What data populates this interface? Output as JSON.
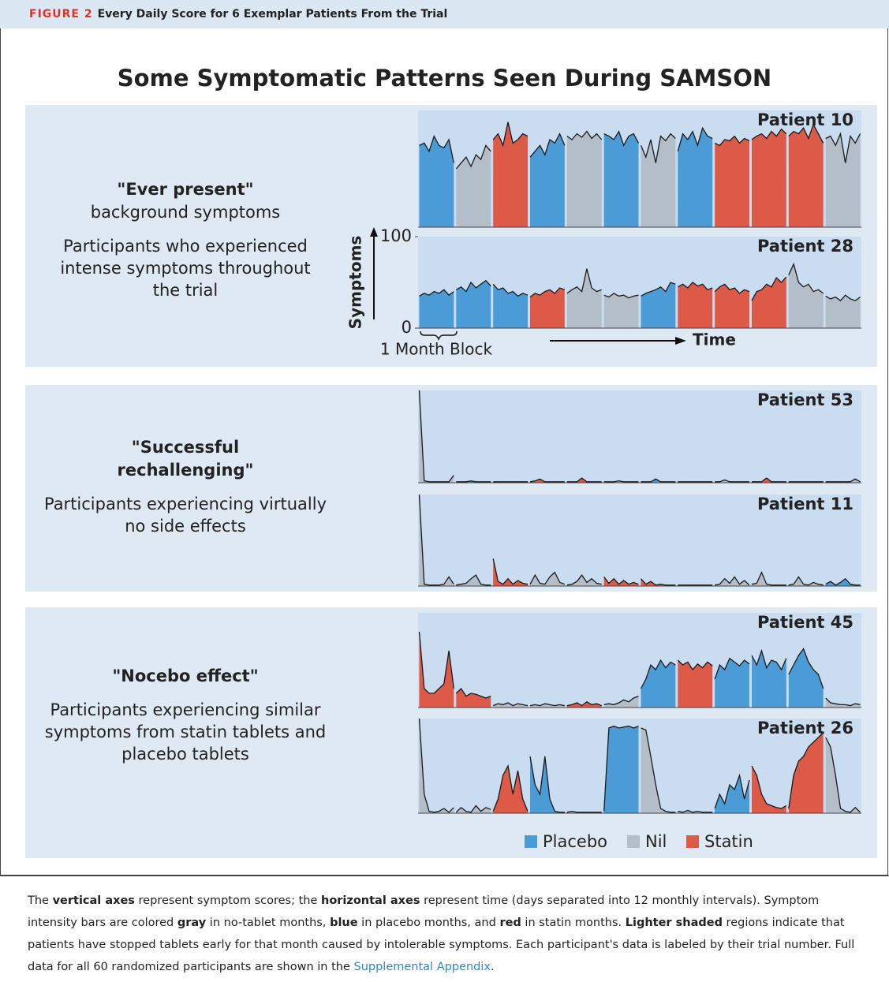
{
  "header": {
    "label": "FIGURE 2",
    "title": "Every Daily Score for 6 Exemplar Patients From the Trial"
  },
  "title": "Some Symptomatic Patterns Seen During SAMSON",
  "sections": [
    {
      "heading": [
        "\"Ever present\"",
        "background symptoms"
      ],
      "description": "Participants who experienced intense symptoms throughout the trial"
    },
    {
      "heading": [
        "\"Successful rechallenging\""
      ],
      "description": "Participants experiencing virtually no side effects"
    },
    {
      "heading": [
        "\"Nocebo effect\""
      ],
      "description": "Participants experiencing similar symptoms from statin tablets and placebo tablets"
    }
  ],
  "chart_data": {
    "type": "block-area",
    "ylim": [
      0,
      100
    ],
    "yticks": [
      0,
      100
    ],
    "ylabel": "Symptoms",
    "xlabel": "Time",
    "block_label": "1 Month Block",
    "legend": [
      {
        "name": "Placebo",
        "color": "#4a9bd6"
      },
      {
        "name": "Nil",
        "color": "#b4bec8"
      },
      {
        "name": "Statin",
        "color": "#dd5a48"
      }
    ],
    "panels": [
      {
        "title": "Patient 10",
        "blocks": [
          {
            "group": "Placebo",
            "values": [
              70,
              72,
              65,
              78,
              70,
              68,
              75,
              55
            ]
          },
          {
            "group": "Nil",
            "values": [
              50,
              55,
              60,
              52,
              62,
              58,
              70,
              65
            ]
          },
          {
            "group": "Statin",
            "values": [
              75,
              80,
              70,
              90,
              72,
              75,
              80,
              78
            ]
          },
          {
            "group": "Placebo",
            "values": [
              60,
              65,
              70,
              62,
              75,
              72,
              80,
              70
            ]
          },
          {
            "group": "Nil",
            "values": [
              78,
              75,
              80,
              77,
              82,
              76,
              80,
              75
            ]
          },
          {
            "group": "Placebo",
            "values": [
              80,
              78,
              75,
              82,
              70,
              78,
              80,
              72
            ]
          },
          {
            "group": "Nil",
            "values": [
              70,
              60,
              75,
              55,
              78,
              74,
              80,
              76
            ]
          },
          {
            "group": "Placebo",
            "values": [
              65,
              80,
              75,
              82,
              70,
              85,
              78,
              76
            ]
          },
          {
            "group": "Statin",
            "values": [
              72,
              70,
              75,
              74,
              78,
              72,
              76,
              74
            ]
          },
          {
            "group": "Statin",
            "values": [
              75,
              78,
              80,
              76,
              82,
              78,
              84,
              80
            ]
          },
          {
            "group": "Statin",
            "values": [
              78,
              82,
              80,
              85,
              76,
              88,
              80,
              72
            ]
          },
          {
            "group": "Nil",
            "values": [
              76,
              78,
              70,
              80,
              55,
              78,
              72,
              80
            ]
          }
        ]
      },
      {
        "title": "Patient 28",
        "blocks": [
          {
            "group": "Placebo",
            "values": [
              35,
              38,
              36,
              40,
              38,
              42,
              36,
              40
            ]
          },
          {
            "group": "Placebo",
            "values": [
              42,
              45,
              40,
              50,
              44,
              48,
              52,
              46
            ]
          },
          {
            "group": "Placebo",
            "values": [
              48,
              42,
              44,
              38,
              40,
              35,
              38,
              36
            ]
          },
          {
            "group": "Statin",
            "values": [
              34,
              38,
              36,
              40,
              42,
              38,
              44,
              42
            ]
          },
          {
            "group": "Nil",
            "values": [
              38,
              42,
              45,
              40,
              65,
              44,
              40,
              42
            ]
          },
          {
            "group": "Nil",
            "values": [
              36,
              34,
              38,
              35,
              36,
              33,
              35,
              36
            ]
          },
          {
            "group": "Placebo",
            "values": [
              35,
              38,
              40,
              42,
              45,
              40,
              50,
              48
            ]
          },
          {
            "group": "Statin",
            "values": [
              45,
              48,
              44,
              50,
              46,
              48,
              42,
              44
            ]
          },
          {
            "group": "Statin",
            "values": [
              40,
              45,
              48,
              42,
              44,
              38,
              42,
              40
            ]
          },
          {
            "group": "Statin",
            "values": [
              30,
              40,
              42,
              48,
              45,
              55,
              50,
              56
            ]
          },
          {
            "group": "Nil",
            "values": [
              58,
              70,
              50,
              45,
              48,
              40,
              42,
              38
            ]
          },
          {
            "group": "Nil",
            "values": [
              35,
              32,
              34,
              30,
              36,
              32,
              30,
              34
            ]
          }
        ]
      },
      {
        "title": "Patient 53",
        "blocks": [
          {
            "group": "Nil",
            "values": [
              100,
              2,
              1,
              1,
              1,
              1,
              1,
              8
            ]
          },
          {
            "group": "Placebo",
            "values": [
              1,
              1,
              1,
              2,
              1,
              1,
              1,
              1
            ]
          },
          {
            "group": "Nil",
            "values": [
              1,
              1,
              1,
              1,
              1,
              1,
              1,
              1
            ]
          },
          {
            "group": "Statin",
            "values": [
              1,
              2,
              4,
              1,
              1,
              1,
              1,
              1
            ]
          },
          {
            "group": "Statin",
            "values": [
              1,
              1,
              1,
              5,
              1,
              1,
              1,
              1
            ]
          },
          {
            "group": "Nil",
            "values": [
              1,
              1,
              1,
              2,
              1,
              1,
              1,
              1
            ]
          },
          {
            "group": "Placebo",
            "values": [
              1,
              1,
              1,
              4,
              1,
              1,
              1,
              1
            ]
          },
          {
            "group": "Nil",
            "values": [
              1,
              1,
              1,
              1,
              1,
              1,
              1,
              1
            ]
          },
          {
            "group": "Nil",
            "values": [
              1,
              1,
              3,
              1,
              1,
              1,
              1,
              1
            ]
          },
          {
            "group": "Statin",
            "values": [
              1,
              1,
              1,
              5,
              1,
              1,
              1,
              1
            ]
          },
          {
            "group": "Nil",
            "values": [
              1,
              1,
              1,
              1,
              1,
              1,
              1,
              1
            ]
          },
          {
            "group": "Nil",
            "values": [
              1,
              1,
              1,
              1,
              1,
              1,
              4,
              1
            ]
          }
        ]
      },
      {
        "title": "Patient 11",
        "blocks": [
          {
            "group": "Nil",
            "values": [
              100,
              2,
              1,
              1,
              1,
              2,
              10,
              2
            ]
          },
          {
            "group": "Nil",
            "values": [
              1,
              2,
              3,
              8,
              12,
              2,
              1,
              1
            ]
          },
          {
            "group": "Statin",
            "values": [
              30,
              5,
              2,
              8,
              2,
              6,
              3,
              2
            ]
          },
          {
            "group": "Nil",
            "values": [
              2,
              12,
              3,
              2,
              10,
              15,
              4,
              2
            ]
          },
          {
            "group": "Nil",
            "values": [
              1,
              2,
              5,
              12,
              4,
              8,
              3,
              2
            ]
          },
          {
            "group": "Statin",
            "values": [
              10,
              3,
              8,
              2,
              6,
              2,
              4,
              2
            ]
          },
          {
            "group": "Statin",
            "values": [
              8,
              2,
              5,
              1,
              2,
              1,
              1,
              1
            ]
          },
          {
            "group": "Nil",
            "values": [
              1,
              1,
              1,
              1,
              1,
              1,
              1,
              1
            ]
          },
          {
            "group": "Nil",
            "values": [
              1,
              2,
              8,
              3,
              10,
              2,
              6,
              1
            ]
          },
          {
            "group": "Nil",
            "values": [
              2,
              3,
              15,
              2,
              1,
              1,
              1,
              1
            ]
          },
          {
            "group": "Nil",
            "values": [
              1,
              2,
              10,
              2,
              1,
              4,
              2,
              1
            ]
          },
          {
            "group": "Placebo",
            "values": [
              2,
              5,
              1,
              4,
              8,
              2,
              1,
              1
            ]
          }
        ]
      },
      {
        "title": "Patient 45",
        "blocks": [
          {
            "group": "Statin",
            "values": [
              80,
              20,
              15,
              15,
              20,
              25,
              60,
              20
            ]
          },
          {
            "group": "Statin",
            "values": [
              15,
              20,
              12,
              15,
              14,
              12,
              10,
              12
            ]
          },
          {
            "group": "Nil",
            "values": [
              2,
              4,
              3,
              5,
              2,
              4,
              3,
              2
            ]
          },
          {
            "group": "Nil",
            "values": [
              2,
              3,
              2,
              4,
              3,
              2,
              3,
              2
            ]
          },
          {
            "group": "Statin",
            "values": [
              2,
              3,
              5,
              2,
              6,
              3,
              4,
              2
            ]
          },
          {
            "group": "Nil",
            "values": [
              3,
              4,
              3,
              5,
              8,
              6,
              10,
              12
            ]
          },
          {
            "group": "Placebo",
            "values": [
              20,
              30,
              45,
              40,
              50,
              42,
              48,
              45
            ]
          },
          {
            "group": "Statin",
            "values": [
              50,
              45,
              48,
              40,
              46,
              42,
              48,
              44
            ]
          },
          {
            "group": "Placebo",
            "values": [
              30,
              45,
              40,
              52,
              48,
              44,
              50,
              46
            ]
          },
          {
            "group": "Placebo",
            "values": [
              55,
              45,
              60,
              42,
              50,
              48,
              40,
              52
            ]
          },
          {
            "group": "Placebo",
            "values": [
              35,
              45,
              55,
              62,
              48,
              40,
              35,
              20
            ]
          },
          {
            "group": "Nil",
            "values": [
              10,
              5,
              4,
              3,
              3,
              2,
              4,
              3
            ]
          }
        ]
      },
      {
        "title": "Patient 26",
        "blocks": [
          {
            "group": "Nil",
            "values": [
              100,
              20,
              2,
              1,
              2,
              5,
              1,
              6
            ]
          },
          {
            "group": "Nil",
            "values": [
              1,
              6,
              2,
              1,
              8,
              2,
              6,
              4
            ]
          },
          {
            "group": "Statin",
            "values": [
              2,
              15,
              40,
              50,
              20,
              45,
              15,
              2
            ]
          },
          {
            "group": "Placebo",
            "values": [
              60,
              30,
              20,
              60,
              15,
              2,
              1,
              1
            ]
          },
          {
            "group": "Nil",
            "values": [
              1,
              2,
              1,
              1,
              1,
              1,
              1,
              1
            ]
          },
          {
            "group": "Placebo",
            "values": [
              2,
              90,
              92,
              90,
              91,
              92,
              90,
              92
            ]
          },
          {
            "group": "Nil",
            "values": [
              90,
              88,
              60,
              30,
              5,
              2,
              1,
              1
            ]
          },
          {
            "group": "Nil",
            "values": [
              2,
              1,
              3,
              1,
              2,
              1,
              1,
              1
            ]
          },
          {
            "group": "Placebo",
            "values": [
              5,
              20,
              10,
              30,
              25,
              40,
              15,
              35
            ]
          },
          {
            "group": "Statin",
            "values": [
              50,
              40,
              20,
              10,
              8,
              6,
              5,
              8
            ]
          },
          {
            "group": "Statin",
            "values": [
              5,
              40,
              55,
              60,
              70,
              75,
              80,
              85
            ]
          },
          {
            "group": "Nil",
            "values": [
              80,
              70,
              40,
              5,
              2,
              1,
              6,
              1
            ]
          }
        ]
      }
    ]
  },
  "caption": [
    "The ",
    "vertical axes",
    " represent symptom scores; the ",
    "horizontal axes",
    " represent time (days separated into 12 monthly intervals). Symptom intensity bars are colored ",
    "gray",
    " in no-tablet months, ",
    "blue",
    " in placebo months, and ",
    "red",
    " in statin months. ",
    "Lighter shaded",
    " regions indicate that patients have stopped tablets early for that month caused by intolerable symptoms. Each participant's data is labeled by their trial number. Full data for all 60 randomized participants are shown in the ",
    "Supplemental Appendix",
    "."
  ]
}
